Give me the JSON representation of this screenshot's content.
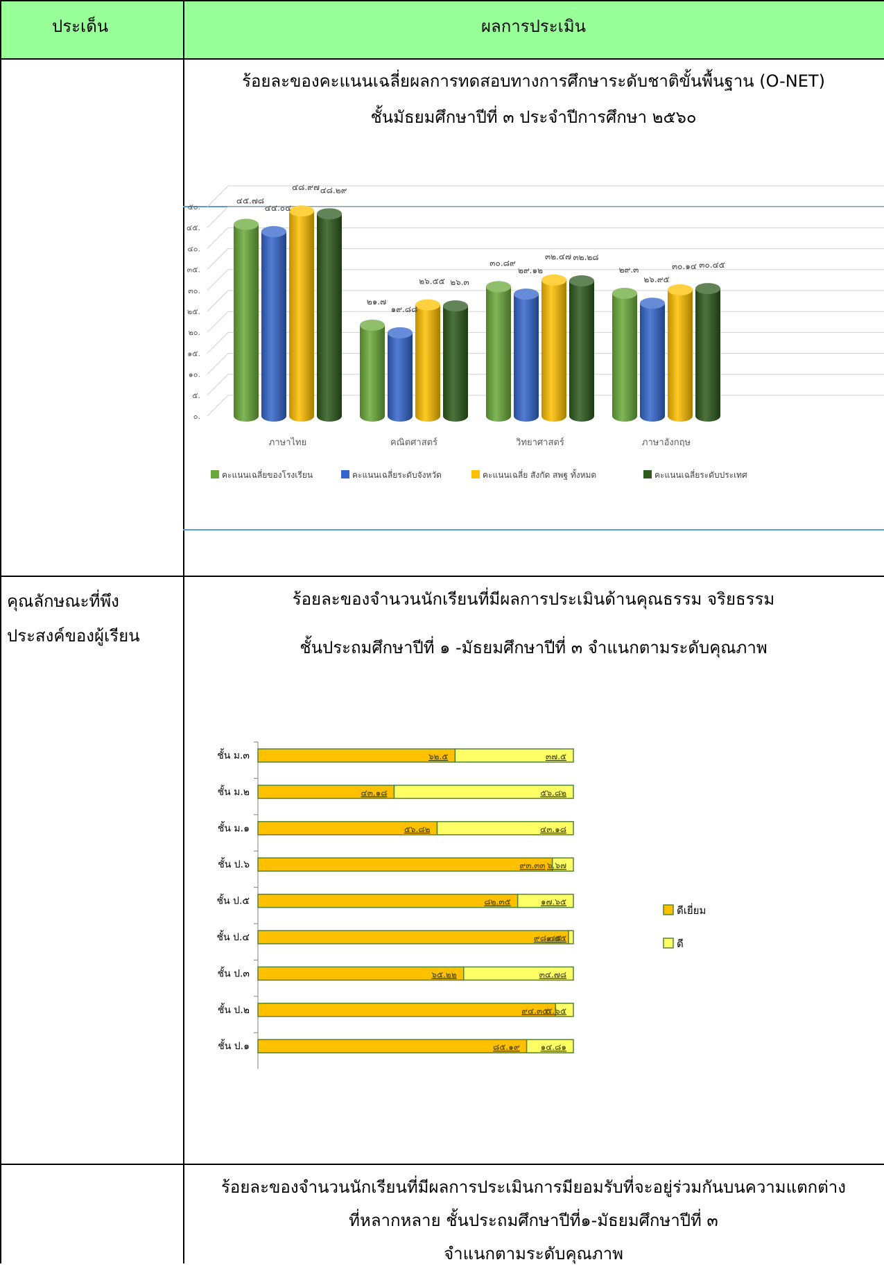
{
  "header": {
    "col1": "ประเด็น",
    "col2": "ผลการประเมิน"
  },
  "section1": {
    "title_line1": "ร้อยละของคะแนนเฉลี่ยผลการทดสอบทางการศึกษาระดับชาติขั้นพื้นฐาน (O-NET)",
    "title_line2": "ชั้นมัธยมศึกษาปีที่ ๓ ประจำปีการศึกษา ๒๕๖๐"
  },
  "section2": {
    "label_line1": "คุณลักษณะที่พึง",
    "label_line2": "ประสงค์ของผู้เรียน",
    "title_line1": "ร้อยละของจำนวนนักเรียนที่มีผลการประเมินด้านคุณธรรม จริยธรรม",
    "title_line2": "ชั้นประถมศึกษาปีที่ ๑ -มัธยมศึกษาปีที่ ๓ จำแนกตามระดับคุณภาพ"
  },
  "section3": {
    "title_line1": "ร้อยละของจำนวนนักเรียนที่มีผลการประเมินการมียอมรับที่จะอยู่ร่วมกันบนความแตกต่าง",
    "title_line2": "ที่หลากหลาย ชั้นประถมศึกษาปีที่๑-มัธยมศึกษาปีที่ ๓",
    "title_line3": "จำแนกตามระดับคุณภาพ"
  },
  "chart_data": [
    {
      "type": "bar",
      "style": "3d-cylinder",
      "categories": [
        "ภาษาไทย",
        "คณิตศาสตร์",
        "วิทยาศาสตร์",
        "ภาษาอังกฤษ"
      ],
      "series": [
        {
          "name": "คะแนนเฉลี่ยของโรงเรียน",
          "values": [
            45.78,
            21.7,
            30.89,
            29.3
          ],
          "labels": [
            "๔๕.๗๘",
            "๒๑.๗",
            "๓๐.๘๙",
            "๒๙.๓"
          ],
          "color": "#6aaa3a"
        },
        {
          "name": "คะแนนเฉลี่ยระดับจังหวัด",
          "values": [
            44.04,
            19.88,
            29.12,
            26.95
          ],
          "labels": [
            "๔๔.๐๔",
            "๑๙.๘๘",
            "๒๙.๑๒",
            "๒๖.๙๕"
          ],
          "color": "#3366cc"
        },
        {
          "name": "คะแนนเฉลี่ย สังกัด สพฐ ทั้งหมด",
          "values": [
            48.97,
            26.55,
            32.47,
            30.14
          ],
          "labels": [
            "๔๘.๙๗",
            "๒๖.๕๕",
            "๓๒.๔๗",
            "๓๐.๑๔"
          ],
          "color": "#ffc000"
        },
        {
          "name": "คะแนนเฉลี่ยระดับประเทศ",
          "values": [
            48.29,
            26.3,
            32.28,
            30.45
          ],
          "labels": [
            "๔๘.๒๙",
            "๒๖.๓",
            "๓๒.๒๘",
            "๓๐.๔๕"
          ],
          "color": "#2e5a1c"
        }
      ],
      "ylim": [
        0,
        50
      ],
      "yticks": [
        "๐.",
        "๕.",
        "๑๐.",
        "๑๕.",
        "๒๐.",
        "๒๕.",
        "๓๐.",
        "๓๕.",
        "๔๐.",
        "๔๕.",
        "๕๐."
      ],
      "grid": true,
      "legend": "bottom"
    },
    {
      "type": "bar",
      "orientation": "horizontal",
      "stacked": true,
      "categories": [
        "ชั้น ม.๓",
        "ชั้น ม.๒",
        "ชั้น ม.๑",
        "ชั้น ป.๖",
        "ชั้น ป.๕",
        "ชั้น ป.๔",
        "ชั้น ป.๓",
        "ชั้น ป.๒",
        "ชั้น ป.๑"
      ],
      "series": [
        {
          "name": "ดีเยี่ยม",
          "values": [
            62.5,
            43.18,
            56.82,
            93.33,
            82.35,
            98.45,
            65.22,
            94.35,
            85.19
          ],
          "labels": [
            "๖๒.๕",
            "๔๓.๑๘",
            "๕๖.๘๒",
            "๙๓.๓๓",
            "๘๒.๓๕",
            "๙๘.๔๕",
            "๖๕.๒๒",
            "๙๔.๓๕",
            "๘๕.๑๙"
          ],
          "color": "#ffc000"
        },
        {
          "name": "ดี",
          "values": [
            37.5,
            56.82,
            43.18,
            6.67,
            17.65,
            1.55,
            34.78,
            5.65,
            14.81
          ],
          "labels": [
            "๓๗.๕",
            "๕๖.๘๒",
            "๔๓.๑๘",
            "๖.๖๗",
            "๑๗.๖๕",
            "๑.๕๕",
            "๓๔.๗๘",
            "๕.๖๕",
            "๑๔.๘๑"
          ],
          "color": "#ffff66"
        }
      ],
      "xlim": [
        0,
        100
      ],
      "legend": "right"
    }
  ]
}
